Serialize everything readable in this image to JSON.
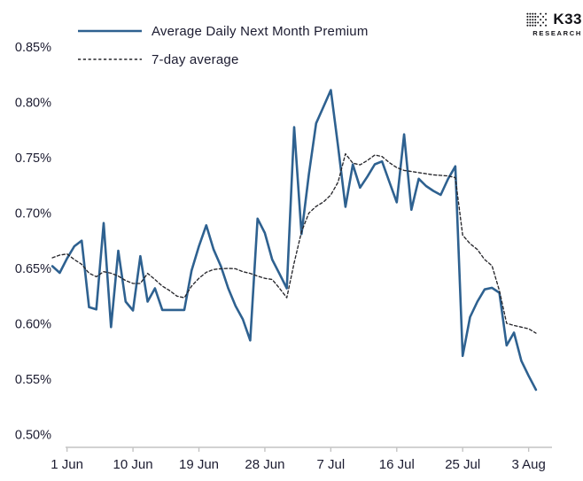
{
  "logo": {
    "title": "K33",
    "subtitle": "RESEARCH"
  },
  "colors": {
    "premium_line": "#2e6190",
    "average_line": "#26262b",
    "text": "#1b1b30",
    "axis": "#c4c4c4",
    "background": "#ffffff"
  },
  "chart_data": {
    "type": "line",
    "title": "",
    "y_unit": "%",
    "ylim": [
      0.5,
      0.85
    ],
    "grid": false,
    "legend_position": "top-left",
    "y_ticks": {
      "values": [
        0.85,
        0.8,
        0.75,
        0.7,
        0.65,
        0.6,
        0.55,
        0.5
      ],
      "labels": [
        "0.85%",
        "0.80%",
        "0.75%",
        "0.70%",
        "0.65%",
        "0.60%",
        "0.55%",
        "0.50%"
      ]
    },
    "x_ticks": [
      {
        "label": "1 Jun",
        "day_index": 2
      },
      {
        "label": "10 Jun",
        "day_index": 11
      },
      {
        "label": "19 Jun",
        "day_index": 20
      },
      {
        "label": "28 Jun",
        "day_index": 29
      },
      {
        "label": "7 Jul",
        "day_index": 38
      },
      {
        "label": "16 Jul",
        "day_index": 47
      },
      {
        "label": "25 Jul",
        "day_index": 56
      },
      {
        "label": "3 Aug",
        "day_index": 65
      }
    ],
    "x_dates": [
      "30 May",
      "31 May",
      "1 Jun",
      "2 Jun",
      "3 Jun",
      "4 Jun",
      "5 Jun",
      "6 Jun",
      "7 Jun",
      "8 Jun",
      "9 Jun",
      "10 Jun",
      "11 Jun",
      "12 Jun",
      "13 Jun",
      "14 Jun",
      "15 Jun",
      "16 Jun",
      "17 Jun",
      "18 Jun",
      "19 Jun",
      "20 Jun",
      "21 Jun",
      "22 Jun",
      "23 Jun",
      "24 Jun",
      "25 Jun",
      "26 Jun",
      "27 Jun",
      "28 Jun",
      "29 Jun",
      "30 Jun",
      "1 Jul",
      "2 Jul",
      "3 Jul",
      "4 Jul",
      "5 Jul",
      "6 Jul",
      "7 Jul",
      "8 Jul",
      "9 Jul",
      "10 Jul",
      "11 Jul",
      "12 Jul",
      "13 Jul",
      "14 Jul",
      "15 Jul",
      "16 Jul",
      "17 Jul",
      "18 Jul",
      "19 Jul",
      "20 Jul",
      "21 Jul",
      "22 Jul",
      "23 Jul",
      "24 Jul",
      "25 Jul",
      "26 Jul",
      "27 Jul",
      "28 Jul",
      "29 Jul",
      "30 Jul",
      "31 Jul",
      "1 Aug",
      "2 Aug",
      "3 Aug",
      "4 Aug"
    ],
    "series": [
      {
        "name": "Average Daily Next Month Premium",
        "style": "solid",
        "color": "#2e6190",
        "width": 2.6,
        "values": [
          0.652,
          0.646,
          0.659,
          0.67,
          0.675,
          0.615,
          0.613,
          0.691,
          0.597,
          0.666,
          0.62,
          0.612,
          0.661,
          0.62,
          0.632,
          0.6125,
          0.6125,
          0.6125,
          0.6125,
          0.648,
          0.67,
          0.689,
          0.667,
          0.652,
          0.632,
          0.616,
          0.604,
          0.585,
          0.695,
          0.682,
          0.658,
          0.645,
          0.632,
          0.7776,
          0.681,
          0.735,
          0.781,
          0.796,
          0.811,
          0.76,
          0.7056,
          0.7438,
          0.723,
          0.733,
          0.744,
          0.7466,
          0.728,
          0.7097,
          0.771,
          0.703,
          0.731,
          0.7244,
          0.72,
          0.7164,
          0.7308,
          0.7422,
          0.571,
          0.606,
          0.62,
          0.631,
          0.6325,
          0.628,
          0.5804,
          0.592,
          0.5666,
          0.553,
          0.5404
        ]
      },
      {
        "name": "7-day average",
        "style": "dashed",
        "color": "#26262b",
        "width": 1.35,
        "values": [
          0.6596,
          0.662,
          0.663,
          0.658,
          0.6537,
          0.6457,
          0.6425,
          0.647,
          0.6457,
          0.643,
          0.639,
          0.6364,
          0.6364,
          0.6455,
          0.64,
          0.634,
          0.63,
          0.625,
          0.6235,
          0.634,
          0.641,
          0.6465,
          0.649,
          0.6497,
          0.65,
          0.6497,
          0.647,
          0.6455,
          0.643,
          0.641,
          0.64,
          0.632,
          0.6235,
          0.655,
          0.683,
          0.7,
          0.706,
          0.71,
          0.7164,
          0.728,
          0.7535,
          0.745,
          0.7435,
          0.7475,
          0.7524,
          0.751,
          0.7455,
          0.741,
          0.7385,
          0.7375,
          0.7365,
          0.7355,
          0.7345,
          0.734,
          0.7335,
          0.732,
          0.68,
          0.6724,
          0.667,
          0.658,
          0.6524,
          0.63,
          0.6004,
          0.5985,
          0.597,
          0.5955,
          0.5915
        ]
      }
    ]
  }
}
